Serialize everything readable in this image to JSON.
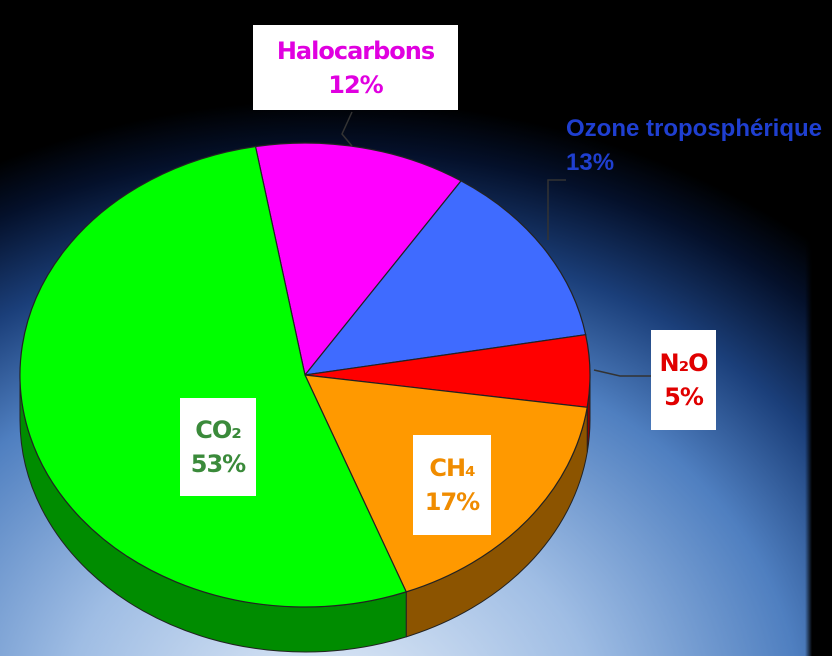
{
  "chart_data": {
    "type": "pie",
    "categories": [
      "Halocarbons",
      "Ozone troposphérique",
      "N₂O",
      "CH₄",
      "CO₂"
    ],
    "values": [
      12,
      13,
      5,
      17,
      53
    ],
    "value_labels": [
      "12%",
      "13%",
      "5%",
      "17%",
      "53%"
    ],
    "colors": [
      "#ff00ff",
      "#3f6bff",
      "#ff0000",
      "#ff9900",
      "#00ff00"
    ]
  }
}
